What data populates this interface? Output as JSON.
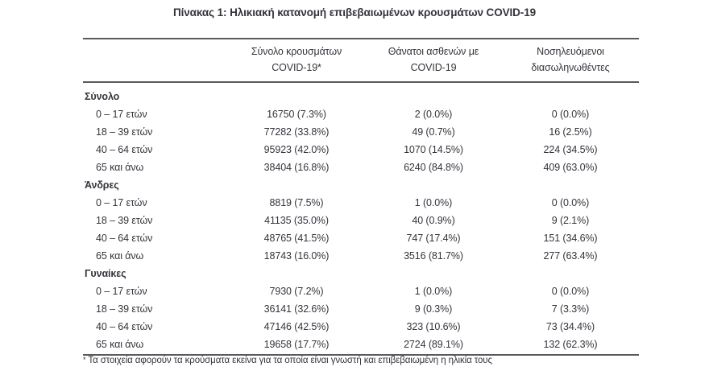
{
  "title": "Πίνακας 1: Ηλικιακή κατανομή επιβεβαιωμένων κρουσμάτων COVID-19",
  "table": {
    "columns": [
      {
        "line1": "Σύνολο κρουσμάτων",
        "line2": "COVID-19*"
      },
      {
        "line1": "Θάνατοι ασθενών με",
        "line2": "COVID-19"
      },
      {
        "line1": "Νοσηλευόμενοι",
        "line2": "διασωληνωθέντες"
      }
    ],
    "sections": [
      {
        "label": "Σύνολο",
        "rows": [
          {
            "label": "0 – 17 ετών",
            "cases": "16750 (7.3%)",
            "deaths": "2 (0.0%)",
            "intubated": "0 (0.0%)"
          },
          {
            "label": "18 – 39 ετών",
            "cases": "77282 (33.8%)",
            "deaths": "49 (0.7%)",
            "intubated": "16 (2.5%)"
          },
          {
            "label": "40 – 64 ετών",
            "cases": "95923 (42.0%)",
            "deaths": "1070 (14.5%)",
            "intubated": "224 (34.5%)"
          },
          {
            "label": "65 και άνω",
            "cases": "38404 (16.8%)",
            "deaths": "6240 (84.8%)",
            "intubated": "409 (63.0%)"
          }
        ]
      },
      {
        "label": "Άνδρες",
        "rows": [
          {
            "label": "0 – 17 ετών",
            "cases": "8819 (7.5%)",
            "deaths": "1 (0.0%)",
            "intubated": "0 (0.0%)"
          },
          {
            "label": "18 – 39 ετών",
            "cases": "41135 (35.0%)",
            "deaths": "40 (0.9%)",
            "intubated": "9 (2.1%)"
          },
          {
            "label": "40 – 64 ετών",
            "cases": "48765 (41.5%)",
            "deaths": "747 (17.4%)",
            "intubated": "151 (34.6%)"
          },
          {
            "label": "65 και άνω",
            "cases": "18743 (16.0%)",
            "deaths": "3516 (81.7%)",
            "intubated": "277 (63.4%)"
          }
        ]
      },
      {
        "label": "Γυναίκες",
        "rows": [
          {
            "label": "0 – 17 ετών",
            "cases": "7930 (7.2%)",
            "deaths": "1 (0.0%)",
            "intubated": "0 (0.0%)"
          },
          {
            "label": "18 – 39 ετών",
            "cases": "36141 (32.6%)",
            "deaths": "9 (0.3%)",
            "intubated": "7 (3.3%)"
          },
          {
            "label": "40 – 64 ετών",
            "cases": "47146 (42.5%)",
            "deaths": "323 (10.6%)",
            "intubated": "73 (34.4%)"
          },
          {
            "label": "65 και άνω",
            "cases": "19658 (17.7%)",
            "deaths": "2724 (89.1%)",
            "intubated": "132 (62.3%)"
          }
        ]
      }
    ]
  },
  "footnote": {
    "marker": "*",
    "text": "Τα στοιχεία αφορούν τα κρούσματα εκείνα για τα οποία είναι γνωστή και επιβεβαιωμένη η ηλικία τους"
  }
}
